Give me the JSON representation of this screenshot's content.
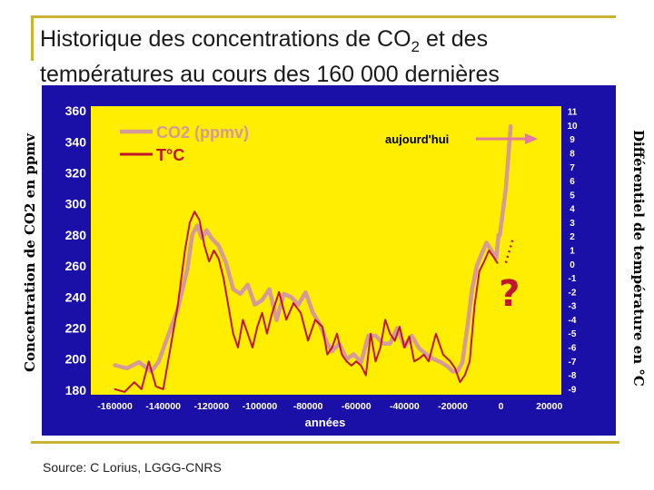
{
  "title": {
    "line1_prefix": "Historique des concentrations de CO",
    "line1_sub": "2",
    "line1_suffix": " et des",
    "line2": "températures au cours des 160 000 dernières"
  },
  "source": "Source: C Lorius, LGGG-CNRS",
  "colors": {
    "frame": "#c8b432",
    "chart_bg": "#1a10a8",
    "plot_bg": "#ffee00",
    "co2_line": "#d69a98",
    "temp_line": "#c0152a",
    "arrow": "#e07aa0"
  },
  "chart_data": {
    "type": "line",
    "xlabel": "années",
    "ylabel": "Concentration de CO2 en ppmv",
    "y2label": "Différentiel de température en °C",
    "xlim": [
      -170000,
      25000
    ],
    "ylim": [
      177,
      363
    ],
    "y2lim": [
      -9.4,
      11.4
    ],
    "x_ticks": [
      -160000,
      -140000,
      -120000,
      -100000,
      -80000,
      -60000,
      -40000,
      -20000,
      0,
      20000
    ],
    "x_tick_labels": [
      "-160000",
      "-140000",
      "-120000",
      "-100000",
      "-80000",
      "-60000",
      "-40000",
      "-20000",
      "0",
      "20000"
    ],
    "y_ticks": [
      180,
      200,
      220,
      240,
      260,
      280,
      300,
      320,
      340,
      360
    ],
    "y_tick_labels": [
      "180",
      "200",
      "220",
      "240",
      "260",
      "280",
      "300",
      "320",
      "340",
      "360"
    ],
    "y2_ticks": [
      -9,
      -8,
      -7,
      -6,
      -5,
      -4,
      -3,
      -2,
      -1,
      0,
      1,
      2,
      3,
      4,
      5,
      6,
      7,
      8,
      9,
      10,
      11
    ],
    "y2_tick_labels": [
      "-9",
      "-8",
      "-7",
      "-6",
      "-5",
      "-4",
      "-3",
      "-2",
      "-1",
      "0",
      "1",
      "2",
      "3",
      "4",
      "5",
      "6",
      "7",
      "8",
      "9",
      "10",
      "11"
    ],
    "grid": false,
    "legend_position": "top-left",
    "series": [
      {
        "name": "CO2 (ppmv)",
        "axis": "left",
        "x": [
          -160000,
          -155000,
          -150000,
          -145000,
          -142000,
          -138000,
          -134000,
          -130000,
          -128000,
          -126000,
          -124000,
          -122000,
          -120000,
          -117000,
          -114000,
          -111000,
          -108000,
          -105000,
          -102000,
          -99000,
          -96000,
          -93000,
          -90000,
          -87000,
          -84000,
          -81000,
          -78000,
          -75000,
          -72000,
          -70000,
          -67000,
          -64000,
          -61000,
          -58000,
          -55000,
          -52000,
          -49000,
          -46000,
          -43000,
          -40000,
          -37000,
          -34000,
          -31000,
          -28000,
          -25000,
          -22000,
          -20000,
          -18000,
          -16000,
          -14000,
          -12000,
          -10000,
          -8000,
          -6000,
          -4000,
          -2000,
          -1000
        ],
        "values": [
          196,
          194,
          198,
          192,
          198,
          215,
          232,
          258,
          280,
          286,
          278,
          283,
          278,
          273,
          262,
          245,
          242,
          248,
          235,
          238,
          245,
          225,
          242,
          240,
          235,
          243,
          230,
          222,
          210,
          205,
          210,
          200,
          203,
          198,
          215,
          215,
          210,
          210,
          220,
          208,
          215,
          207,
          203,
          200,
          198,
          195,
          192,
          192,
          198,
          220,
          245,
          260,
          268,
          275,
          270,
          265,
          280
        ]
      },
      {
        "name": "T°C",
        "axis": "right",
        "x": [
          -160000,
          -156000,
          -152000,
          -149000,
          -146000,
          -143000,
          -140000,
          -137000,
          -134000,
          -131000,
          -129000,
          -127000,
          -125000,
          -123000,
          -121000,
          -119000,
          -117000,
          -115000,
          -113000,
          -111000,
          -109000,
          -107000,
          -105000,
          -103000,
          -101000,
          -99000,
          -97000,
          -95000,
          -92000,
          -89000,
          -86000,
          -83000,
          -80000,
          -77000,
          -74000,
          -72000,
          -70000,
          -68000,
          -66000,
          -64000,
          -62000,
          -60000,
          -58000,
          -56000,
          -54000,
          -52000,
          -50000,
          -48000,
          -46000,
          -44000,
          -42000,
          -40000,
          -38000,
          -36000,
          -34000,
          -32000,
          -30000,
          -27000,
          -24000,
          -21000,
          -19000,
          -17000,
          -15000,
          -13000,
          -11000,
          -9000,
          -7000,
          -5000,
          -3000,
          -1500
        ],
        "values": [
          -9,
          -9.2,
          -8.5,
          -9,
          -7,
          -8.8,
          -9,
          -6,
          -3,
          1,
          3,
          3.8,
          3.2,
          1.4,
          0.2,
          1,
          0.4,
          -1,
          -3,
          -5,
          -6,
          -4,
          -5,
          -6,
          -4.5,
          -3.5,
          -5,
          -3.6,
          -2,
          -4,
          -2.8,
          -3.5,
          -5.5,
          -4,
          -4.5,
          -6.5,
          -6,
          -5,
          -6.5,
          -7,
          -7.3,
          -7,
          -7.3,
          -8,
          -5,
          -7,
          -6,
          -4,
          -5,
          -5.5,
          -4.5,
          -6,
          -5.2,
          -7,
          -6.8,
          -6.5,
          -7,
          -5,
          -6.5,
          -7,
          -7.5,
          -8.5,
          -8,
          -7,
          -3,
          -0.5,
          0.2,
          1,
          0.5,
          0.1
        ]
      }
    ],
    "annotations": {
      "today_label": "aujourd'hui",
      "question_mark": "?",
      "co2_today_x": [
        -500,
        2000,
        4000
      ],
      "co2_today_values": [
        280,
        310,
        350
      ]
    }
  }
}
